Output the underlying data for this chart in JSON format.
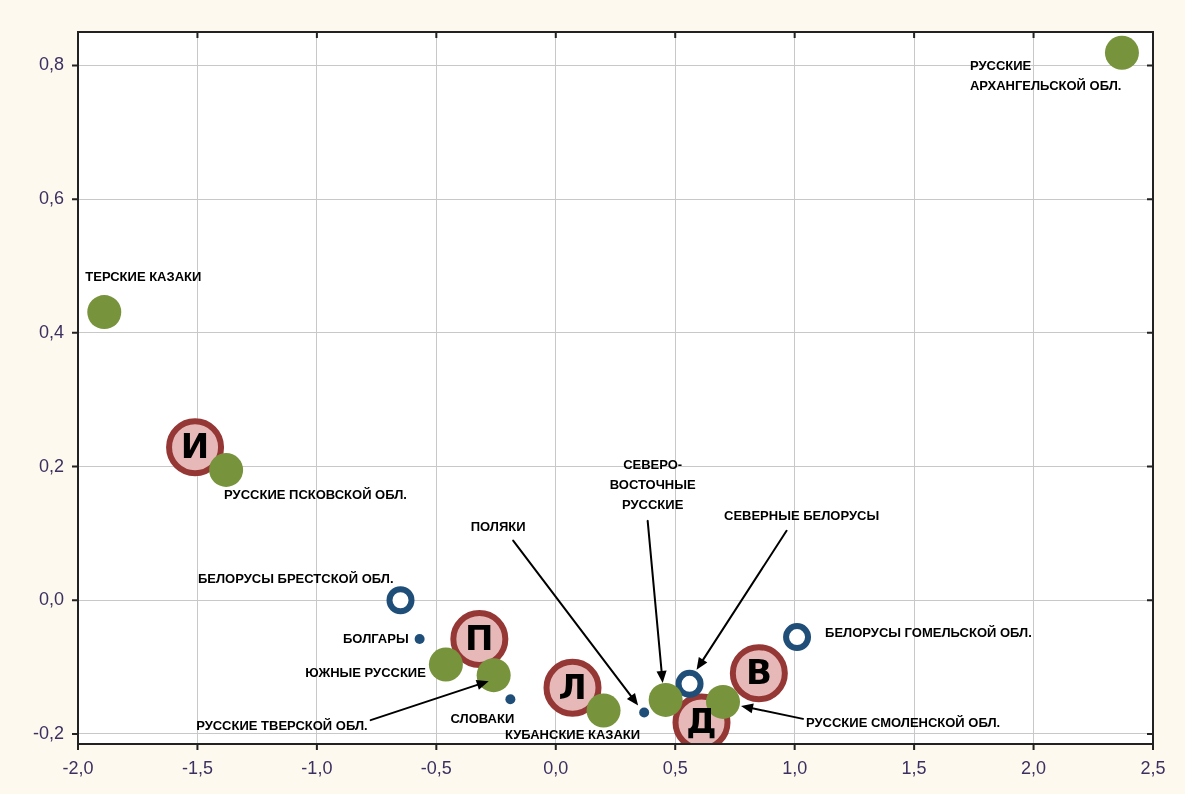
{
  "chart_data": {
    "type": "scatter",
    "xlim": [
      -2,
      2.5
    ],
    "ylim": [
      -0.215,
      0.85
    ],
    "xticks": [
      {
        "value": -2,
        "label": "-2,0"
      },
      {
        "value": -1.5,
        "label": "-1,5"
      },
      {
        "value": -1,
        "label": "-1,0"
      },
      {
        "value": -0.5,
        "label": "-0,5"
      },
      {
        "value": 0,
        "label": "0,0"
      },
      {
        "value": 0.5,
        "label": "0,5"
      },
      {
        "value": 1,
        "label": "1,0"
      },
      {
        "value": 1.5,
        "label": "1,5"
      },
      {
        "value": 2,
        "label": "2,0"
      },
      {
        "value": 2.5,
        "label": "2,5"
      }
    ],
    "yticks": [
      {
        "value": -0.2,
        "label": "-0,2"
      },
      {
        "value": 0,
        "label": "0,0"
      },
      {
        "value": 0.2,
        "label": "0,2"
      },
      {
        "value": 0.4,
        "label": "0,4"
      },
      {
        "value": 0.6,
        "label": "0,6"
      },
      {
        "value": 0.8,
        "label": "0,8"
      }
    ],
    "grid": true,
    "marker": "circle",
    "annotations": [
      "ПОЛЯКИ",
      "СЕВЕРНЫЕ БЕЛОРУСЫ"
    ],
    "series": [
      {
        "color": "#77933c",
        "x": [
          2.37,
          -1.89,
          -1.38,
          -0.46,
          -0.26,
          0.2,
          0.46,
          0.7
        ],
        "values": [
          0.819,
          0.431,
          0.195,
          -0.096,
          -0.112,
          -0.165,
          -0.149,
          -0.152
        ],
        "value_labels": [
          "РУССКИЕ\nАРХАНГЕЛЬСКОЙ ОБЛ.",
          "ТЕРСКИЕ КАЗАКИ",
          "РУССКИЕ ПСКОВСКОЙ ОБЛ.",
          "ЮЖНЫЕ РУССКИЕ",
          "РУССКИЕ ТВЕРСКОЙ ОБЛ.",
          "КУБАНСКИЕ КАЗАКИ",
          "СЕВЕРО-\nВОСТОЧНЫЕ\nРУССКИЕ",
          "РУССКИЕ СМОЛЕНСКОЙ ОБЛ."
        ]
      },
      {
        "color": "#1f4e79",
        "x": [
          -0.57,
          -0.19,
          0.37
        ],
        "values": [
          -0.058,
          -0.148,
          -0.168
        ],
        "value_labels": [
          "БОЛГАРЫ",
          "СЛОВАКИ",
          null
        ]
      },
      {
        "color": "#1f4e79",
        "x": [
          -0.65,
          0.56,
          1.01
        ],
        "values": [
          0.0,
          -0.125,
          -0.055
        ],
        "value_labels": [
          "БЕЛОРУСЫ БРЕСТСКОЙ ОБЛ.",
          null,
          "БЕЛОРУСЫ ГОМЕЛЬСКОЙ ОБЛ."
        ]
      },
      {
        "color": "#953735",
        "x": [
          -1.51,
          -0.32,
          0.07,
          0.85,
          0.61
        ],
        "values": [
          0.229,
          -0.058,
          -0.131,
          -0.109,
          -0.183
        ],
        "value_labels": [
          "И",
          "П",
          "Л",
          "В",
          "Д"
        ]
      }
    ]
  }
}
